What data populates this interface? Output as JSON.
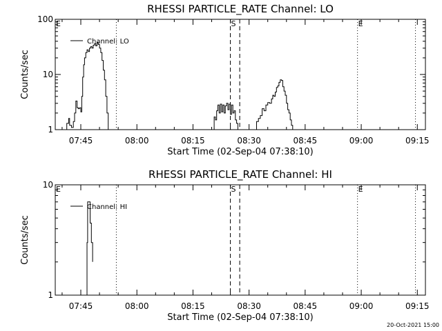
{
  "chart_data": [
    {
      "type": "line",
      "title": "RHESSI PARTICLE_RATE Channel: LO",
      "xlabel": "Start Time (02-Sep-04 07:38:10)",
      "ylabel": "Counts/sec",
      "ylog": true,
      "xlim": [
        "07:38:10",
        "09:17:10"
      ],
      "ylim": [
        1,
        100
      ],
      "ytick_labels": [
        "1",
        "10",
        "100"
      ],
      "xtick_labels": [
        "07:45",
        "08:00",
        "08:15",
        "08:30",
        "08:45",
        "09:00",
        "09:15"
      ],
      "legend": {
        "label": "Channel: LO",
        "position": "top-left"
      },
      "markers": [
        {
          "label": "E",
          "time": "07:38:10",
          "style": "dotted"
        },
        {
          "label": "",
          "time": "07:54:30",
          "style": "dotted"
        },
        {
          "label": "S",
          "time": "08:25:00",
          "style": "dashed"
        },
        {
          "label": "",
          "time": "08:27:30",
          "style": "dashed"
        },
        {
          "label": "E",
          "time": "08:59:00",
          "style": "dotted"
        },
        {
          "label": "",
          "time": "09:14:30",
          "style": "dotted"
        }
      ],
      "series": [
        {
          "name": "Channel: LO",
          "segments": [
            [
              [
                "07:40:45",
                1
              ],
              [
                "07:41:15",
                1.3
              ],
              [
                "07:41:45",
                1.6
              ],
              [
                "07:42:00",
                1.2
              ],
              [
                "07:42:30",
                1.1
              ],
              [
                "07:43:00",
                1.4
              ],
              [
                "07:43:20",
                2.0
              ],
              [
                "07:43:40",
                3.3
              ],
              [
                "07:44:00",
                2.5
              ],
              [
                "07:44:20",
                2.4
              ],
              [
                "07:44:40",
                2.5
              ],
              [
                "07:45:00",
                2.1
              ],
              [
                "07:45:15",
                4.0
              ],
              [
                "07:45:30",
                9.0
              ],
              [
                "07:45:45",
                15
              ],
              [
                "07:46:00",
                20
              ],
              [
                "07:46:20",
                25
              ],
              [
                "07:46:40",
                28
              ],
              [
                "07:47:00",
                26
              ],
              [
                "07:47:20",
                30
              ],
              [
                "07:47:40",
                32
              ],
              [
                "07:48:00",
                30
              ],
              [
                "07:48:20",
                34
              ],
              [
                "07:48:40",
                36
              ],
              [
                "07:49:00",
                33
              ],
              [
                "07:49:20",
                38
              ],
              [
                "07:49:40",
                35
              ],
              [
                "07:50:00",
                30
              ],
              [
                "07:50:20",
                25
              ],
              [
                "07:50:40",
                18
              ],
              [
                "07:51:00",
                12
              ],
              [
                "07:51:20",
                8
              ],
              [
                "07:51:40",
                4
              ],
              [
                "07:52:00",
                2
              ],
              [
                "07:52:20",
                1
              ]
            ],
            [
              [
                "08:20:20",
                1
              ],
              [
                "08:20:40",
                1.7
              ],
              [
                "08:21:00",
                1.5
              ],
              [
                "08:21:20",
                2.2
              ],
              [
                "08:21:40",
                2.8
              ],
              [
                "08:22:00",
                2.0
              ],
              [
                "08:22:20",
                2.9
              ],
              [
                "08:22:40",
                2.1
              ],
              [
                "08:23:00",
                2.8
              ],
              [
                "08:23:20",
                2.0
              ],
              [
                "08:23:40",
                2.7
              ],
              [
                "08:24:00",
                3.0
              ],
              [
                "08:24:20",
                2.3
              ],
              [
                "08:24:40",
                2.9
              ],
              [
                "08:25:00",
                1.9
              ],
              [
                "08:25:20",
                2.8
              ],
              [
                "08:25:40",
                2.0
              ],
              [
                "08:26:00",
                2.2
              ],
              [
                "08:26:20",
                1.5
              ],
              [
                "08:26:40",
                1.3
              ],
              [
                "08:27:00",
                1
              ]
            ],
            [
              [
                "08:31:30",
                1
              ],
              [
                "08:32:00",
                1.4
              ],
              [
                "08:32:30",
                1.6
              ],
              [
                "08:33:00",
                1.8
              ],
              [
                "08:33:30",
                2.4
              ],
              [
                "08:34:00",
                2.2
              ],
              [
                "08:34:30",
                2.8
              ],
              [
                "08:35:00",
                3.1
              ],
              [
                "08:35:30",
                3.0
              ],
              [
                "08:36:00",
                3.6
              ],
              [
                "08:36:20",
                4.2
              ],
              [
                "08:36:40",
                4.0
              ],
              [
                "08:37:00",
                4.8
              ],
              [
                "08:37:20",
                5.8
              ],
              [
                "08:37:40",
                6.2
              ],
              [
                "08:38:00",
                7.2
              ],
              [
                "08:38:20",
                8.0
              ],
              [
                "08:38:40",
                7.8
              ],
              [
                "08:39:00",
                6.0
              ],
              [
                "08:39:20",
                5.0
              ],
              [
                "08:39:40",
                4.2
              ],
              [
                "08:40:00",
                3.0
              ],
              [
                "08:40:20",
                2.3
              ],
              [
                "08:40:40",
                2.0
              ],
              [
                "08:41:00",
                1.5
              ],
              [
                "08:41:20",
                1.2
              ],
              [
                "08:41:40",
                1
              ]
            ]
          ]
        }
      ]
    },
    {
      "type": "line",
      "title": "RHESSI PARTICLE_RATE Channel: HI",
      "xlabel": "Start Time (02-Sep-04 07:38:10)",
      "ylabel": "Counts/sec",
      "ylog": true,
      "xlim": [
        "07:38:10",
        "09:17:10"
      ],
      "ylim": [
        1,
        10
      ],
      "ytick_labels": [
        "1",
        "10"
      ],
      "xtick_labels": [
        "07:45",
        "08:00",
        "08:15",
        "08:30",
        "08:45",
        "09:00",
        "09:15"
      ],
      "legend": {
        "label": "Channel: HI",
        "position": "top-left"
      },
      "markers": [
        {
          "label": "E",
          "time": "07:38:10",
          "style": "dotted"
        },
        {
          "label": "",
          "time": "07:54:30",
          "style": "dotted"
        },
        {
          "label": "S",
          "time": "08:25:00",
          "style": "dashed"
        },
        {
          "label": "",
          "time": "08:27:30",
          "style": "dashed"
        },
        {
          "label": "E",
          "time": "08:59:00",
          "style": "dotted"
        },
        {
          "label": "",
          "time": "09:14:30",
          "style": "dotted"
        }
      ],
      "series": [
        {
          "name": "Channel: HI",
          "segments": [
            [
              [
                "07:46:20",
                1
              ],
              [
                "07:46:40",
                3.0
              ],
              [
                "07:46:50",
                7.0
              ],
              [
                "07:47:10",
                7.0
              ],
              [
                "07:47:30",
                4.5
              ],
              [
                "07:47:50",
                3.0
              ],
              [
                "07:48:10",
                2.0
              ]
            ]
          ]
        }
      ]
    }
  ],
  "footer": {
    "timestamp": "20-Oct-2021 15:00"
  }
}
